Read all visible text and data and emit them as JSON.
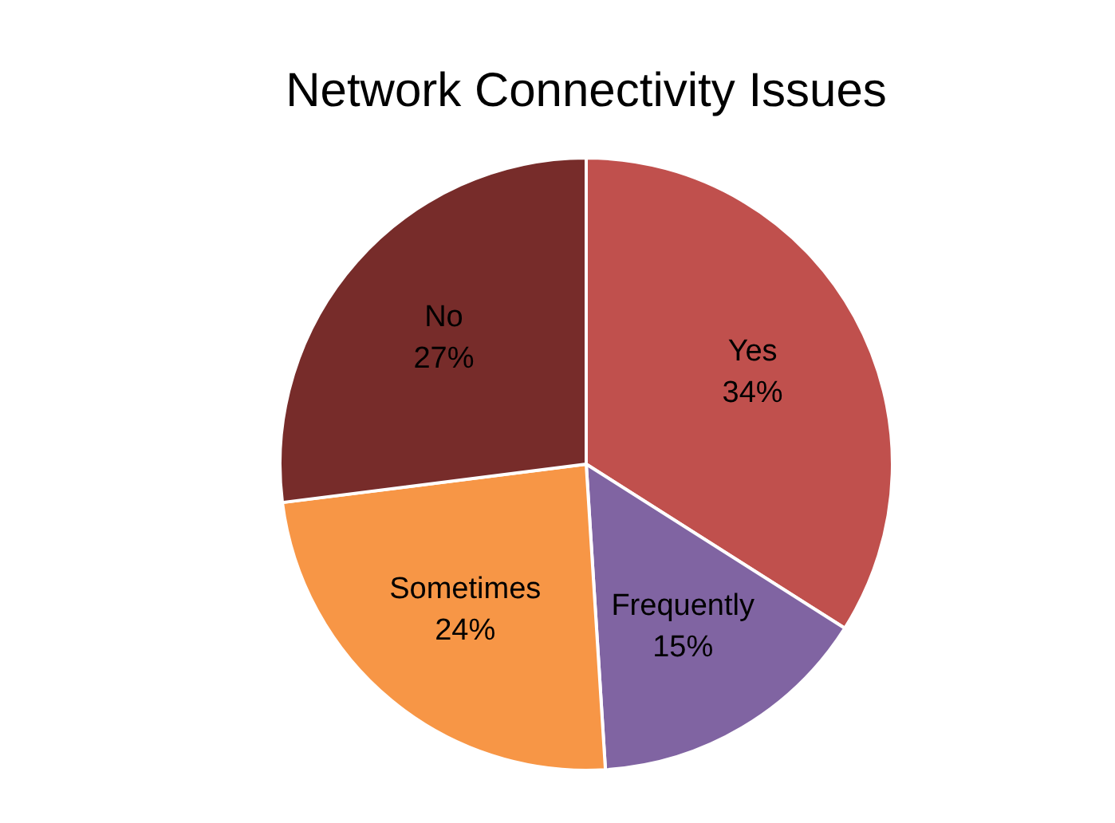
{
  "chart_data": {
    "type": "pie",
    "title": "Network Connectivity Issues",
    "categories": [
      "Yes",
      "Frequently",
      "Sometimes",
      "No"
    ],
    "values": [
      34,
      15,
      24,
      27
    ],
    "value_labels": [
      "34%",
      "15%",
      "24%",
      "27%"
    ],
    "colors": [
      "#c0504d",
      "#8064a2",
      "#f79646",
      "#772c2a"
    ],
    "legend": false
  }
}
